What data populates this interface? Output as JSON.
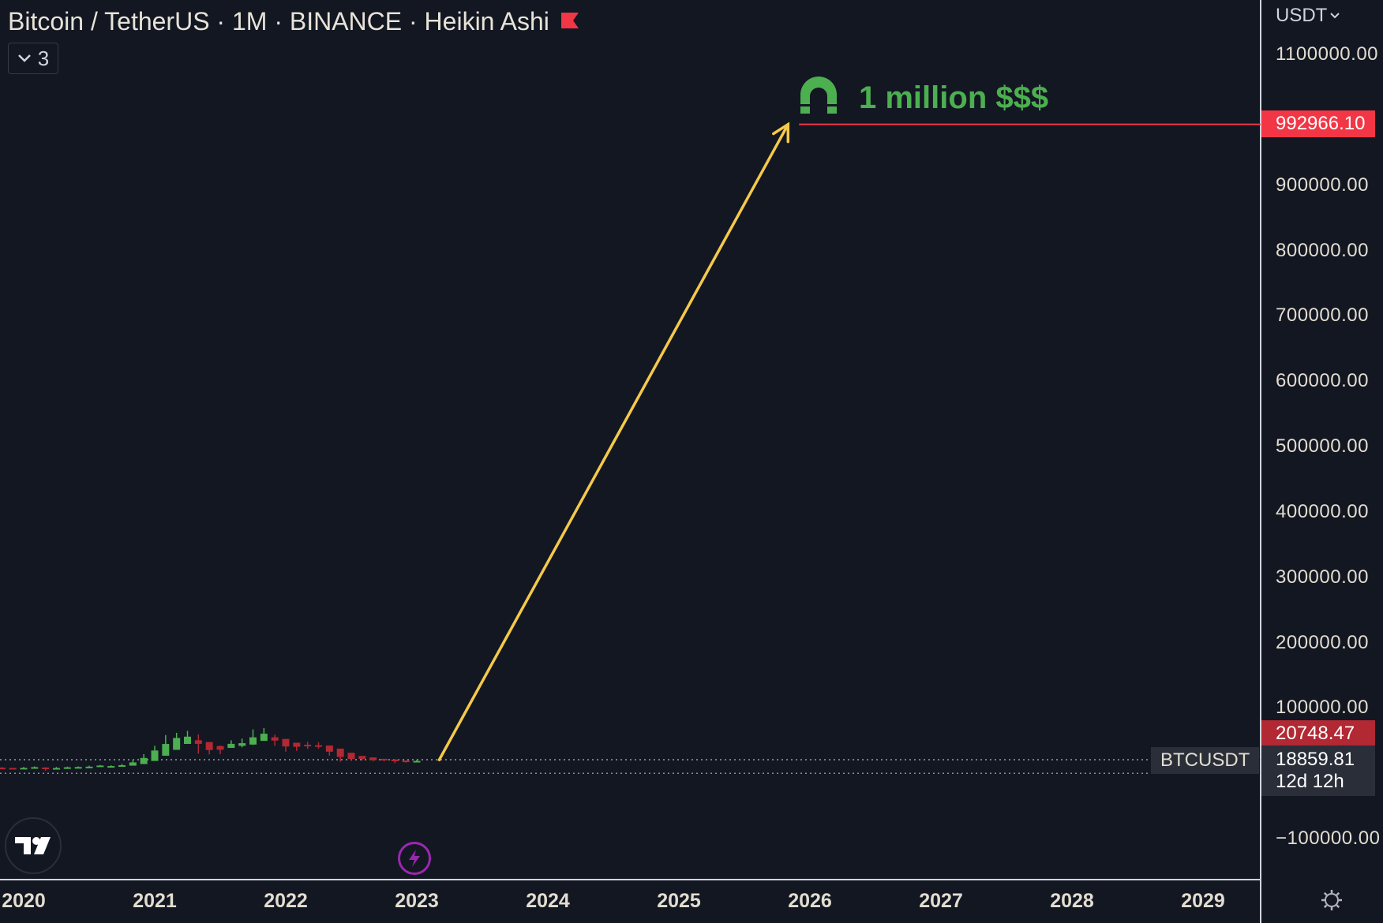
{
  "legend": {
    "title": "Bitcoin / TetherUS · 1M · BINANCE · Heikin Ashi",
    "indicators_count": "3"
  },
  "currency": "USDT",
  "price_tags": {
    "target": "992966.10",
    "high": "20748.47",
    "last": "18859.81",
    "countdown": "12d 12h"
  },
  "symbol": "BTCUSDT",
  "annotation": {
    "text": "1 million $$$",
    "color": "#4caf50"
  },
  "colors": {
    "background": "#131722",
    "up": "#4caf50",
    "down": "#b22833",
    "arrow": "#f5c94a",
    "target_line": "#f23645"
  },
  "icons": [
    "flag-icon",
    "chevron-down-icon",
    "magnet-icon",
    "tradingview-logo",
    "lightning-icon",
    "gear-icon"
  ],
  "chart_data": {
    "type": "candlestick",
    "title": "Bitcoin / TetherUS · 1M · BINANCE · Heikin Ashi",
    "xlabel": "",
    "ylabel": "",
    "x_ticks": [
      "2020",
      "2021",
      "2022",
      "2023",
      "2024",
      "2025",
      "2026",
      "2027",
      "2028",
      "2029"
    ],
    "y_ticks": [
      1100000,
      1000000,
      900000,
      800000,
      700000,
      600000,
      500000,
      400000,
      300000,
      200000,
      100000,
      0,
      -100000
    ],
    "y_tick_labels": [
      "1100000.00",
      "",
      "900000.00",
      "800000.00",
      "700000.00",
      "600000.00",
      "500000.00",
      "400000.00",
      "300000.00",
      "200000.00",
      "100000.00",
      "",
      "−100000.00"
    ],
    "ylim": [
      -125000,
      1135000
    ],
    "xlim": [
      "2019-12",
      "2029-09"
    ],
    "series": [
      {
        "name": "BTCUSDT",
        "ohlc": [
          {
            "t": "2019-11",
            "o": 8500,
            "h": 9500,
            "l": 6600,
            "c": 8200
          },
          {
            "t": "2019-12",
            "o": 8100,
            "h": 7700,
            "l": 6400,
            "c": 7400
          },
          {
            "t": "2020-01",
            "o": 7700,
            "h": 9600,
            "l": 6900,
            "c": 8200
          },
          {
            "t": "2020-02",
            "o": 8000,
            "h": 10500,
            "l": 8000,
            "c": 9300
          },
          {
            "t": "2020-03",
            "o": 8700,
            "h": 9200,
            "l": 3800,
            "c": 7000
          },
          {
            "t": "2020-04",
            "o": 7800,
            "h": 9500,
            "l": 6200,
            "c": 8000
          },
          {
            "t": "2020-05",
            "o": 7900,
            "h": 10100,
            "l": 7900,
            "c": 9100
          },
          {
            "t": "2020-06",
            "o": 8500,
            "h": 10400,
            "l": 8800,
            "c": 9500
          },
          {
            "t": "2020-07",
            "o": 9000,
            "h": 11500,
            "l": 8900,
            "c": 10100
          },
          {
            "t": "2020-08",
            "o": 9500,
            "h": 12500,
            "l": 10600,
            "c": 11800
          },
          {
            "t": "2020-09",
            "o": 10700,
            "h": 12100,
            "l": 9900,
            "c": 11000
          },
          {
            "t": "2020-10",
            "o": 10800,
            "h": 14100,
            "l": 10400,
            "c": 12300
          },
          {
            "t": "2020-11",
            "o": 11600,
            "h": 19900,
            "l": 13200,
            "c": 16600
          },
          {
            "t": "2020-12",
            "o": 14100,
            "h": 29300,
            "l": 17500,
            "c": 23400
          },
          {
            "t": "2021-01",
            "o": 18800,
            "h": 42000,
            "l": 28100,
            "c": 34800
          },
          {
            "t": "2021-02",
            "o": 26800,
            "h": 58400,
            "l": 32300,
            "c": 44800
          },
          {
            "t": "2021-03",
            "o": 35800,
            "h": 61800,
            "l": 45000,
            "c": 54000
          },
          {
            "t": "2021-04",
            "o": 44900,
            "h": 64900,
            "l": 47000,
            "c": 56000
          },
          {
            "t": "2021-05",
            "o": 50500,
            "h": 59500,
            "l": 30000,
            "c": 45000
          },
          {
            "t": "2021-06",
            "o": 47700,
            "h": 41300,
            "l": 28800,
            "c": 35500
          },
          {
            "t": "2021-07",
            "o": 41600,
            "h": 42400,
            "l": 29300,
            "c": 36000
          },
          {
            "t": "2021-08",
            "o": 38800,
            "h": 50500,
            "l": 39400,
            "c": 45000
          },
          {
            "t": "2021-09",
            "o": 41900,
            "h": 52900,
            "l": 39600,
            "c": 46000
          },
          {
            "t": "2021-10",
            "o": 43900,
            "h": 67000,
            "l": 43300,
            "c": 55000
          },
          {
            "t": "2021-11",
            "o": 49500,
            "h": 69000,
            "l": 53300,
            "c": 60500
          },
          {
            "t": "2021-12",
            "o": 55000,
            "h": 59000,
            "l": 42000,
            "c": 50000
          },
          {
            "t": "2022-01",
            "o": 52500,
            "h": 48000,
            "l": 33000,
            "c": 41000
          },
          {
            "t": "2022-02",
            "o": 46700,
            "h": 45800,
            "l": 34300,
            "c": 40500
          },
          {
            "t": "2022-03",
            "o": 43600,
            "h": 48200,
            "l": 37200,
            "c": 42000
          },
          {
            "t": "2022-04",
            "o": 42800,
            "h": 47400,
            "l": 37600,
            "c": 42000
          },
          {
            "t": "2022-05",
            "o": 42400,
            "h": 39900,
            "l": 26700,
            "c": 33000
          },
          {
            "t": "2022-06",
            "o": 37700,
            "h": 31900,
            "l": 17600,
            "c": 25000
          },
          {
            "t": "2022-07",
            "o": 31300,
            "h": 24700,
            "l": 18800,
            "c": 21700
          },
          {
            "t": "2022-08",
            "o": 26500,
            "h": 25200,
            "l": 19500,
            "c": 22000
          },
          {
            "t": "2022-09",
            "o": 24200,
            "h": 22800,
            "l": 18100,
            "c": 20100
          },
          {
            "t": "2022-10",
            "o": 22100,
            "h": 21100,
            "l": 18200,
            "c": 19800
          },
          {
            "t": "2022-11",
            "o": 21000,
            "h": 21400,
            "l": 15500,
            "c": 18300
          },
          {
            "t": "2022-12",
            "o": 19600,
            "h": 18400,
            "l": 16200,
            "c": 17000
          },
          {
            "t": "2023-01",
            "o": 18300,
            "h": 20748.47,
            "l": 16500,
            "c": 18859.81
          }
        ]
      }
    ],
    "annotations": [
      {
        "type": "arrow",
        "from": {
          "t": "2023-03",
          "y": 18859.81
        },
        "to": {
          "t": "2025-11",
          "y": 992966.1
        }
      },
      {
        "type": "horizontal_ray",
        "y": 992966.1,
        "from_t": "2025-12"
      },
      {
        "type": "text",
        "text": "1 million $$$"
      }
    ],
    "reference_lines": [
      20748.47,
      0
    ],
    "grid": false,
    "legend": "top-left"
  }
}
